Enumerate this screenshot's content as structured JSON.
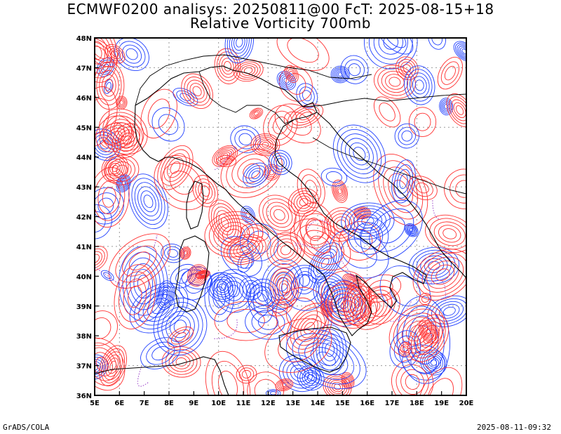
{
  "title_line1": "ECMWF0200 analisys: 20250811@00 FcT: 2025-08-15+18",
  "title_line2": "Relative Vorticity 700mb",
  "footer_left": "GrADS/COLA",
  "footer_right": "2025-08-11-09:32",
  "colors": {
    "positive_contour": "#ff3030",
    "negative_contour": "#2040ff",
    "zero_contour": "#9a40c8",
    "coastline": "#000000",
    "grid": "#9a9a9a",
    "background": "#ffffff"
  },
  "map": {
    "lon_range": [
      5,
      20
    ],
    "lat_range": [
      36,
      48
    ],
    "lon_ticks": [
      "5E",
      "6E",
      "7E",
      "8E",
      "9E",
      "10E",
      "11E",
      "12E",
      "13E",
      "14E",
      "15E",
      "16E",
      "17E",
      "18E",
      "19E",
      "20E"
    ],
    "lat_ticks": [
      "36N",
      "37N",
      "38N",
      "39N",
      "40N",
      "41N",
      "42N",
      "43N",
      "44N",
      "45N",
      "46N",
      "47N",
      "48N"
    ],
    "grid": "dotted"
  }
}
